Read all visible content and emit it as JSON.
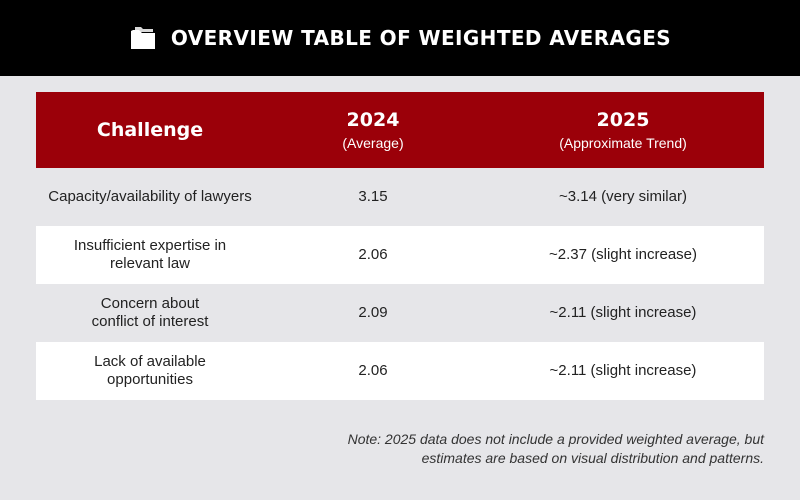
{
  "header": {
    "title": "OVERVIEW TABLE OF WEIGHTED AVERAGES",
    "icon": "folder-icon"
  },
  "table": {
    "columns": [
      {
        "title": "Challenge",
        "subtitle": ""
      },
      {
        "title": "2024",
        "subtitle": "(Average)"
      },
      {
        "title": "2025",
        "subtitle": "(Approximate Trend)"
      }
    ],
    "rows": [
      {
        "challenge": [
          "Capacity/availability of lawyers"
        ],
        "avg_2024": "3.15",
        "trend_2025": "~3.14 (very similar)"
      },
      {
        "challenge": [
          "Insufficient expertise in",
          "relevant law"
        ],
        "avg_2024": "2.06",
        "trend_2025": "~2.37 (slight increase)"
      },
      {
        "challenge": [
          "Concern about",
          "conflict of interest"
        ],
        "avg_2024": "2.09",
        "trend_2025": "~2.11 (slight increase)"
      },
      {
        "challenge": [
          "Lack of available",
          "opportunities"
        ],
        "avg_2024": "2.06",
        "trend_2025": "~2.11 (slight increase)"
      }
    ]
  },
  "note": {
    "lines": [
      "Note: 2025 data does not include a provided weighted average, but",
      "estimates are based on visual distribution and patterns."
    ]
  },
  "colors": {
    "header_bg": "#000000",
    "table_header_bg": "#9b0009",
    "page_bg": "#e6e6e9",
    "row_alt_bg": "#ffffff"
  }
}
